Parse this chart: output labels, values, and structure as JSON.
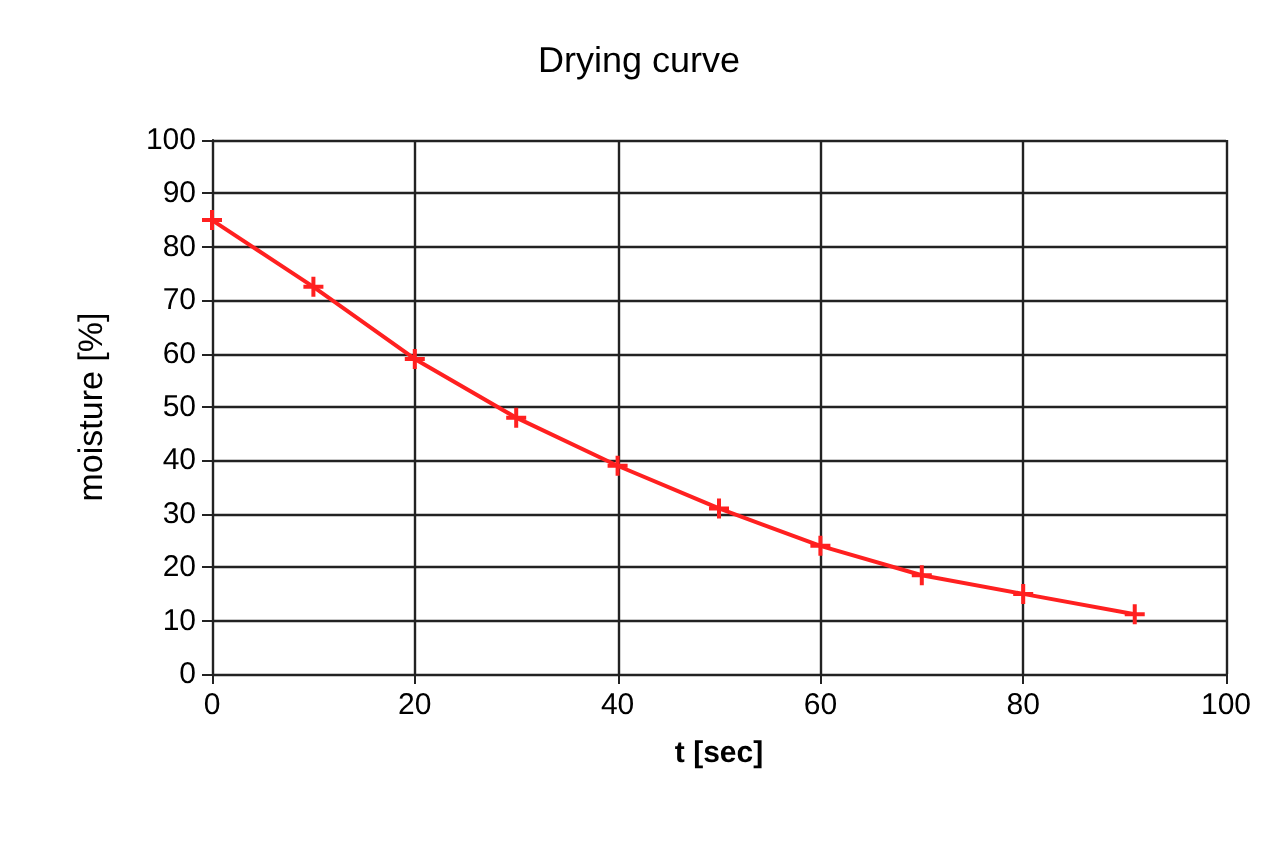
{
  "chart_data": {
    "type": "line",
    "title": "Drying curve",
    "xlabel": "t [sec]",
    "ylabel": "moisture [%]",
    "x": [
      0,
      10,
      20,
      30,
      40,
      50,
      60,
      70,
      80,
      91
    ],
    "series": [
      {
        "color": "#ff2020",
        "values": [
          85,
          72.5,
          59,
          48,
          39,
          31,
          24,
          18.5,
          15,
          11.2
        ]
      }
    ],
    "xlim": [
      0,
      100
    ],
    "xticks": [
      0,
      20,
      40,
      60,
      80,
      100
    ],
    "ylim": [
      0,
      100
    ],
    "yticks": [
      0,
      10,
      20,
      30,
      40,
      50,
      60,
      70,
      80,
      90,
      100
    ],
    "grid": true,
    "marker": "cross",
    "line_style": "solid"
  }
}
